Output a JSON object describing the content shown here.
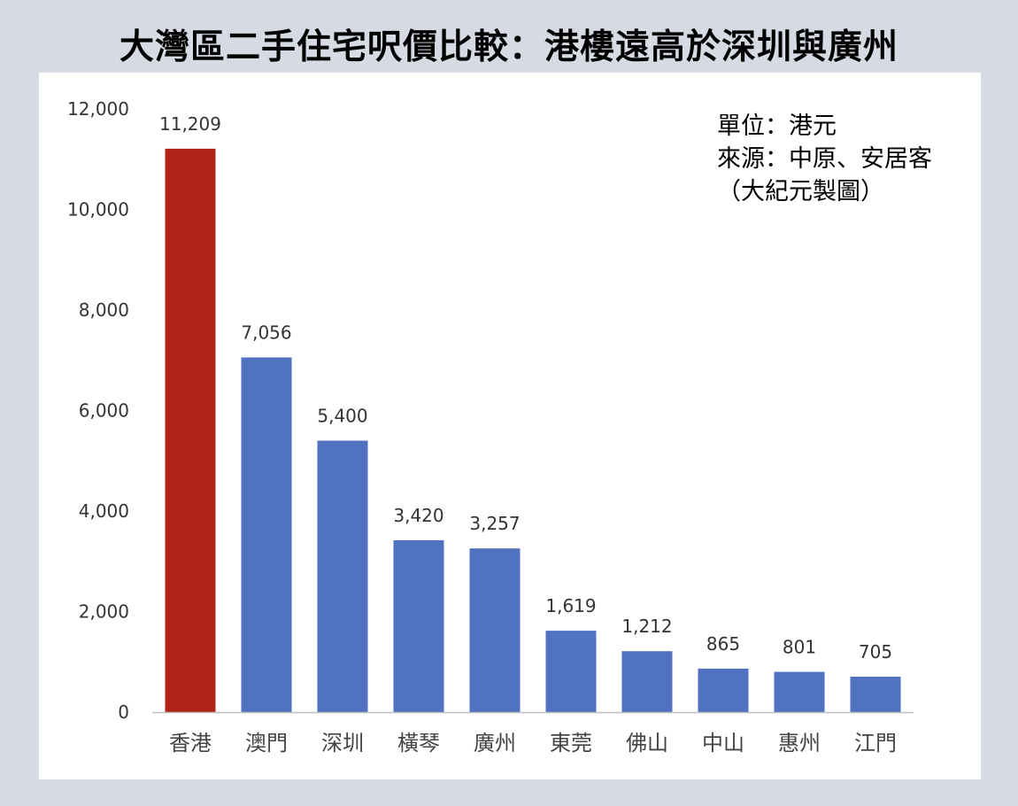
{
  "title": "大灣區二手住宅呎價比較：港樓遠高於深圳與廣州",
  "notes": {
    "unit": "單位：港元",
    "source": "來源：中原、安居客",
    "maker": "（大紀元製圖）"
  },
  "colors": {
    "highlight": "#b02318",
    "bar": "#5072c1",
    "background": "#d5dae3"
  },
  "chart_data": {
    "type": "bar",
    "categories": [
      "香港",
      "澳門",
      "深圳",
      "橫琴",
      "廣州",
      "東莞",
      "佛山",
      "中山",
      "惠州",
      "江門"
    ],
    "values": [
      11209,
      7056,
      5400,
      3420,
      3257,
      1619,
      1212,
      865,
      801,
      705
    ],
    "value_labels": [
      "11,209",
      "7,056",
      "5,400",
      "3,420",
      "3,257",
      "1,619",
      "1,212",
      "865",
      "801",
      "705"
    ],
    "highlight_category": "香港",
    "ylim": [
      0,
      12000
    ],
    "yticks": [
      0,
      2000,
      4000,
      6000,
      8000,
      10000,
      12000
    ],
    "ytick_labels": [
      "0",
      "2,000",
      "4,000",
      "6,000",
      "8,000",
      "10,000",
      "12,000"
    ],
    "grid": false,
    "legend": "none"
  }
}
